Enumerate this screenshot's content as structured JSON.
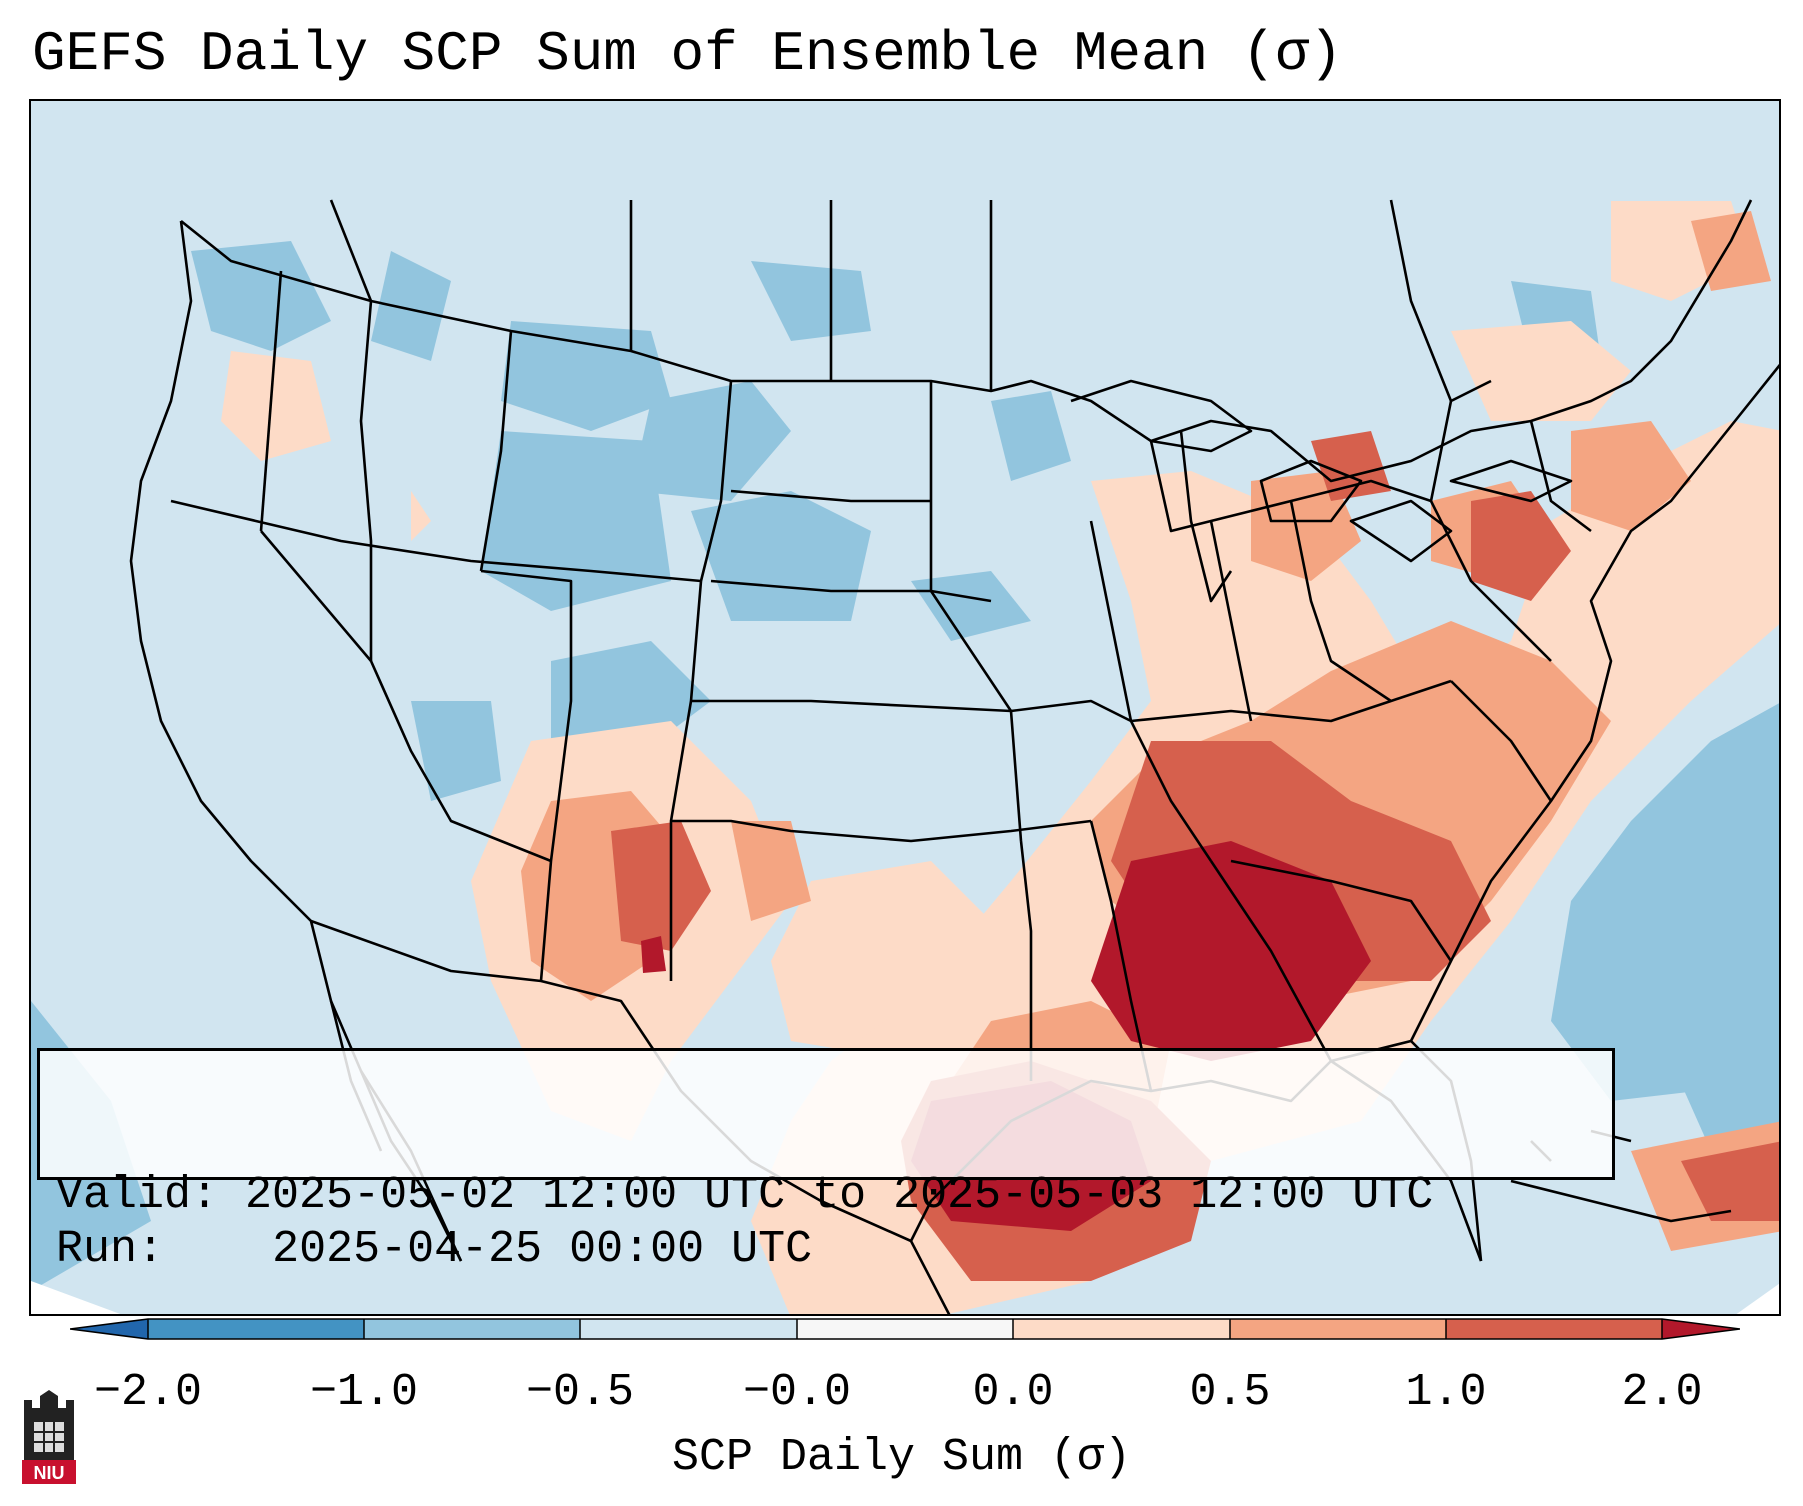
{
  "title": "GEFS Daily SCP Sum of Ensemble Mean (σ)",
  "info": {
    "valid_label": "Valid:",
    "valid_value": "2025-05-02 12:00 UTC to 2025-05-03 12:00 UTC",
    "run_label": "Run:",
    "run_value": "2025-04-25 00:00 UTC"
  },
  "colorbar": {
    "label": "SCP Daily Sum (σ)",
    "ticks": [
      "−2.0",
      "−1.0",
      "−0.5",
      "−0.0",
      "0.0",
      "0.5",
      "1.0",
      "2.0"
    ],
    "colors": {
      "under": "#2166ac",
      "bin_m2_m1": "#4393c3",
      "bin_m1_m05": "#92c5de",
      "bin_m05_0": "#d1e5f0",
      "bin_0_0": "#f7f7f7",
      "bin_0_05": "#fddbc7",
      "bin_05_1": "#f4a582",
      "bin_1_2": "#d6604d",
      "over": "#b2182b"
    }
  },
  "logo": {
    "text": "NIU",
    "icon": "niu-castle-logo-icon"
  },
  "map": {
    "region": "Contiguous United States",
    "field": "SCP Daily Sum (σ)",
    "features": [
      "state-borders",
      "country-borders",
      "coastlines"
    ],
    "notable_areas": [
      {
        "name": "Gulf Coast / Lower Mississippi Valley",
        "level": "over"
      },
      {
        "name": "Southeast / Carolinas",
        "level": "bin_05_1"
      },
      {
        "name": "Northeast coast",
        "level": "bin_05_1"
      },
      {
        "name": "West Texas / New Mexico",
        "level": "bin_1_2"
      },
      {
        "name": "Central Rockies / Plains",
        "level": "bin_m1_m05"
      },
      {
        "name": "Western Atlantic",
        "level": "bin_m1_m05"
      }
    ]
  }
}
